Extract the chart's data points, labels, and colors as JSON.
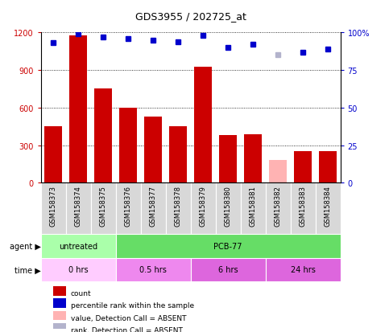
{
  "title": "GDS3955 / 202725_at",
  "samples": [
    "GSM158373",
    "GSM158374",
    "GSM158375",
    "GSM158376",
    "GSM158377",
    "GSM158378",
    "GSM158379",
    "GSM158380",
    "GSM158381",
    "GSM158382",
    "GSM158383",
    "GSM158384"
  ],
  "counts": [
    450,
    1175,
    750,
    600,
    530,
    450,
    925,
    380,
    390,
    180,
    250,
    255
  ],
  "count_absent": [
    false,
    false,
    false,
    false,
    false,
    false,
    false,
    false,
    false,
    true,
    false,
    false
  ],
  "percentile_ranks": [
    93,
    99,
    97,
    96,
    95,
    94,
    98,
    90,
    92,
    85,
    87,
    89
  ],
  "rank_absent": [
    false,
    false,
    false,
    false,
    false,
    false,
    false,
    false,
    false,
    true,
    false,
    false
  ],
  "ylim_left": [
    0,
    1200
  ],
  "ylim_right": [
    0,
    100
  ],
  "yticks_left": [
    0,
    300,
    600,
    900,
    1200
  ],
  "yticks_right": [
    0,
    25,
    50,
    75,
    100
  ],
  "bar_color_normal": "#cc0000",
  "bar_color_absent": "#ffb3b3",
  "dot_color_normal": "#0000cc",
  "dot_color_absent": "#b3b3cc",
  "cell_bg": "#d8d8d8",
  "plot_bg": "#ffffff",
  "agent_groups": [
    {
      "label": "untreated",
      "start": 0,
      "end": 3,
      "color": "#aaffaa"
    },
    {
      "label": "PCB-77",
      "start": 3,
      "end": 12,
      "color": "#66dd66"
    }
  ],
  "time_groups": [
    {
      "label": "0 hrs",
      "start": 0,
      "end": 3,
      "color": "#ffccff"
    },
    {
      "label": "0.5 hrs",
      "start": 3,
      "end": 6,
      "color": "#ee88ee"
    },
    {
      "label": "6 hrs",
      "start": 6,
      "end": 9,
      "color": "#dd66dd"
    },
    {
      "label": "24 hrs",
      "start": 9,
      "end": 12,
      "color": "#dd66dd"
    }
  ],
  "legend_items": [
    {
      "label": "count",
      "color": "#cc0000"
    },
    {
      "label": "percentile rank within the sample",
      "color": "#0000cc"
    },
    {
      "label": "value, Detection Call = ABSENT",
      "color": "#ffb3b3"
    },
    {
      "label": "rank, Detection Call = ABSENT",
      "color": "#b3b3cc"
    }
  ]
}
